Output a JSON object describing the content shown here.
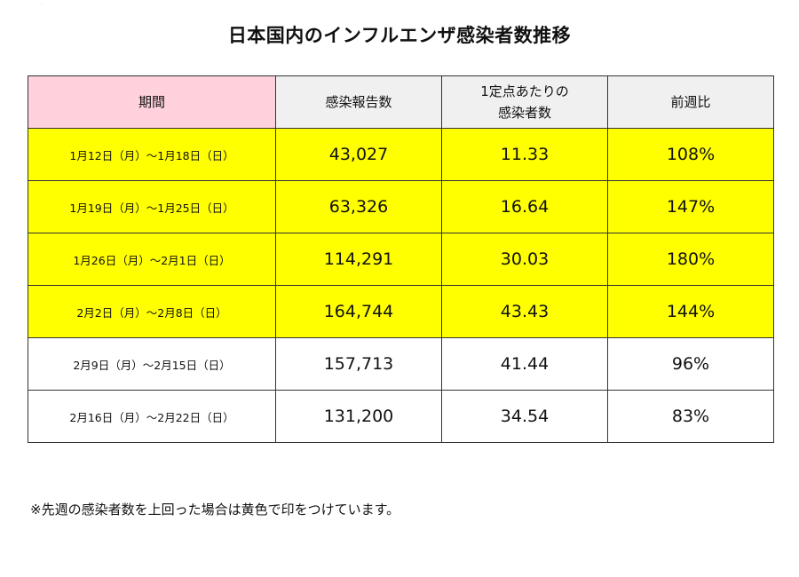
{
  "title": "日本国内のインフルエンザ感染者数推移",
  "corner_mark": "˙",
  "table": {
    "headers": {
      "period": "期間",
      "reports": "感染報告数",
      "per_site_line1": "1定点あたりの",
      "per_site_line2": "感染者数",
      "wow": "前週比"
    },
    "rows": [
      {
        "period": "1月12日（月）～1月18日（日）",
        "reports": "43,027",
        "per_site": "11.33",
        "wow": "108%",
        "highlight": true
      },
      {
        "period": "1月19日（月）～1月25日（日）",
        "reports": "63,326",
        "per_site": "16.64",
        "wow": "147%",
        "highlight": true
      },
      {
        "period": "1月26日（月）～2月1日（日）",
        "reports": "114,291",
        "per_site": "30.03",
        "wow": "180%",
        "highlight": true
      },
      {
        "period": "2月2日（月）～2月8日（日）",
        "reports": "164,744",
        "per_site": "43.43",
        "wow": "144%",
        "highlight": true
      },
      {
        "period": "2月9日（月）～2月15日（日）",
        "reports": "157,713",
        "per_site": "41.44",
        "wow": "96%",
        "highlight": false
      },
      {
        "period": "2月16日（月）～2月22日（日）",
        "reports": "131,200",
        "per_site": "34.54",
        "wow": "83%",
        "highlight": false
      }
    ]
  },
  "footnote": "※先週の感染者数を上回った場合は黄色で印をつけています。",
  "colors": {
    "highlight": "#ffff00",
    "period_header": "#ffd1dc",
    "header": "#f0f0f0",
    "border": "#333333"
  }
}
